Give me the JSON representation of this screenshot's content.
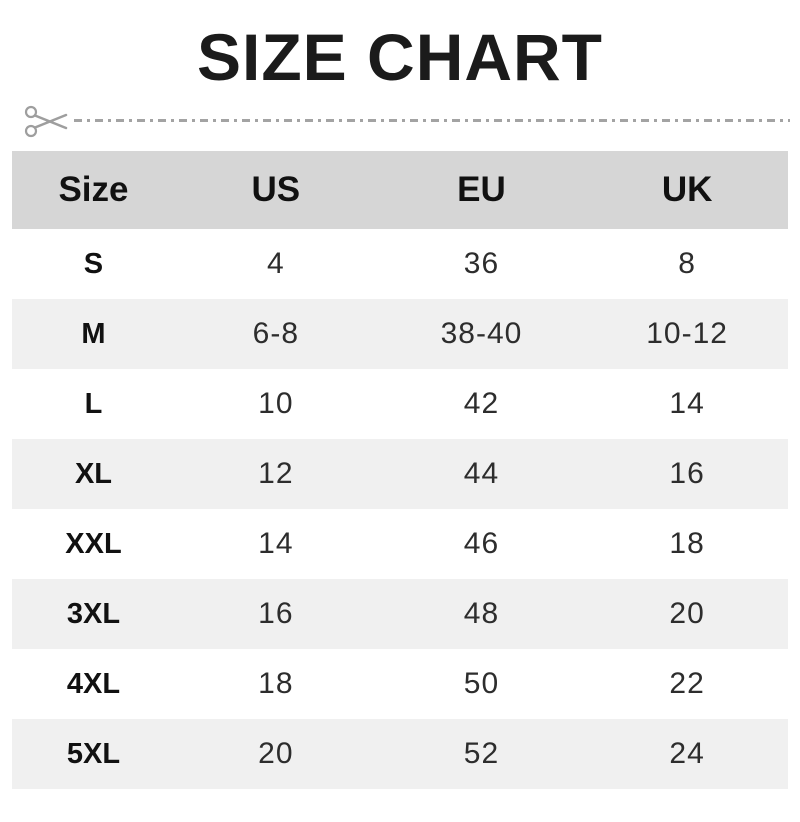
{
  "title": "SIZE CHART",
  "cut_line": {
    "icon": "scissors-icon",
    "style": "dash-dot"
  },
  "colors": {
    "header_bg": "#d6d6d6",
    "stripe_bg": "#f0f0f0",
    "title_text": "#1b1b1b",
    "cut_line": "#a3a3a3"
  },
  "table": {
    "headers": [
      "Size",
      "US",
      "EU",
      "UK"
    ],
    "rows": [
      [
        "S",
        "4",
        "36",
        "8"
      ],
      [
        "M",
        "6-8",
        "38-40",
        "10-12"
      ],
      [
        "L",
        "10",
        "42",
        "14"
      ],
      [
        "XL",
        "12",
        "44",
        "16"
      ],
      [
        "XXL",
        "14",
        "46",
        "18"
      ],
      [
        "3XL",
        "16",
        "48",
        "20"
      ],
      [
        "4XL",
        "18",
        "50",
        "22"
      ],
      [
        "5XL",
        "20",
        "52",
        "24"
      ]
    ]
  }
}
